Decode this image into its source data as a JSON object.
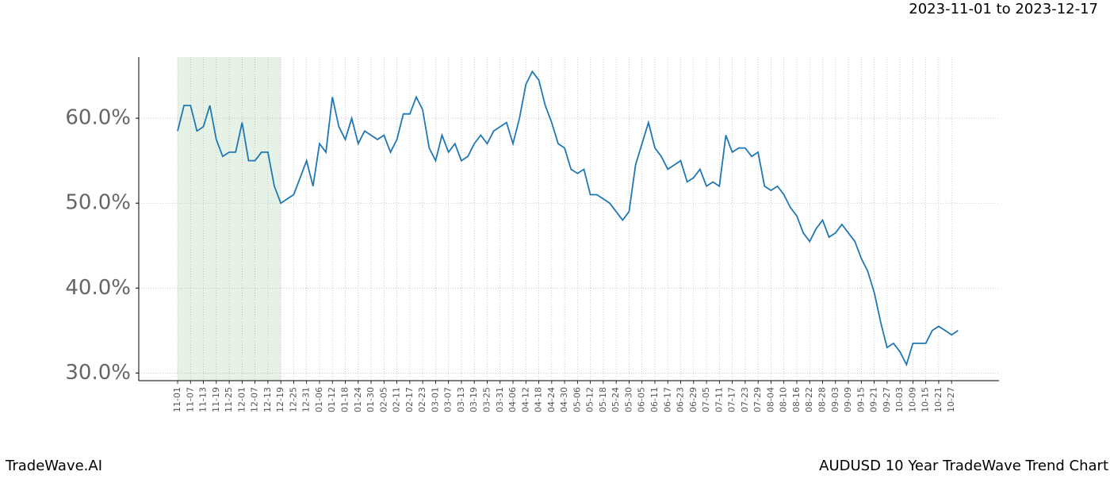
{
  "chart_data": {
    "type": "line",
    "date_range": "2023-11-01 to 2023-12-17",
    "brand": "TradeWave.AI",
    "title": "AUDUSD 10 Year TradeWave Trend Chart",
    "categories": [
      "11-01",
      null,
      "11-07",
      null,
      "11-13",
      null,
      "11-19",
      null,
      "11-25",
      null,
      "12-01",
      null,
      "12-07",
      null,
      "12-13",
      null,
      "12-19",
      null,
      "12-25",
      null,
      "12-31",
      null,
      "01-06",
      null,
      "01-12",
      null,
      "01-18",
      null,
      "01-24",
      null,
      "01-30",
      null,
      "02-05",
      null,
      "02-11",
      null,
      "02-17",
      null,
      "02-23",
      null,
      "03-01",
      null,
      "03-07",
      null,
      "03-13",
      null,
      "03-19",
      null,
      "03-25",
      null,
      "03-31",
      null,
      "04-06",
      null,
      "04-12",
      null,
      "04-18",
      null,
      "04-24",
      null,
      "04-30",
      null,
      "05-06",
      null,
      "05-12",
      null,
      "05-18",
      null,
      "05-24",
      null,
      "05-30",
      null,
      "06-05",
      null,
      "06-11",
      null,
      "06-17",
      null,
      "06-23",
      null,
      "06-29",
      null,
      "07-05",
      null,
      "07-11",
      null,
      "07-17",
      null,
      "07-23",
      null,
      "07-29",
      null,
      "08-04",
      null,
      "08-10",
      null,
      "08-16",
      null,
      "08-22",
      null,
      "08-28",
      null,
      "09-03",
      null,
      "09-09",
      null,
      "09-15",
      null,
      "09-21",
      null,
      "09-27",
      null,
      "10-03",
      null,
      "10-09",
      null,
      "10-15",
      null,
      "10-21",
      null,
      "10-27",
      null
    ],
    "series": [
      {
        "name": "AUDUSD",
        "color": "#1f77b4",
        "values": [
          58.5,
          61.5,
          61.5,
          58.5,
          59,
          61.5,
          57.5,
          55.5,
          56,
          56,
          59.5,
          55,
          55,
          56,
          56,
          52,
          50,
          50.5,
          51,
          53,
          55,
          52,
          57,
          56,
          62.5,
          59,
          57.5,
          60,
          57,
          58.5,
          58,
          57.5,
          58,
          56,
          57.5,
          60.5,
          60.5,
          62.5,
          61,
          56.5,
          55,
          58,
          56,
          57,
          55,
          55.5,
          57,
          58,
          57,
          58.5,
          59,
          59.5,
          57,
          60,
          64,
          65.5,
          64.5,
          61.5,
          59.5,
          57,
          56.5,
          54,
          53.5,
          54,
          51,
          51,
          50.5,
          50,
          49,
          48,
          49,
          54.5,
          57,
          59.5,
          56.5,
          55.5,
          54,
          54.5,
          55,
          52.5,
          53,
          54,
          52,
          52.5,
          52,
          58,
          56,
          56.5,
          56.5,
          55.5,
          56,
          52,
          51.5,
          52,
          51,
          49.5,
          48.5,
          46.5,
          45.5,
          47,
          48,
          46,
          46.5,
          47.5,
          46.5,
          45.5,
          43.5,
          42,
          39.5,
          36,
          33,
          33.5,
          32.5,
          31,
          33.5,
          33.5,
          33.5,
          35,
          35.5,
          35,
          34.5,
          35
        ]
      }
    ],
    "ylim": [
      29.1,
      67.2
    ],
    "yticks": [
      {
        "value": 30,
        "label": "30.0%"
      },
      {
        "value": 40,
        "label": "40.0%"
      },
      {
        "value": 50,
        "label": "50.0%"
      },
      {
        "value": 60,
        "label": "60.0%"
      }
    ],
    "shaded": {
      "from": 0,
      "to": 16,
      "color": "#e6f2e6"
    },
    "grid": true
  }
}
